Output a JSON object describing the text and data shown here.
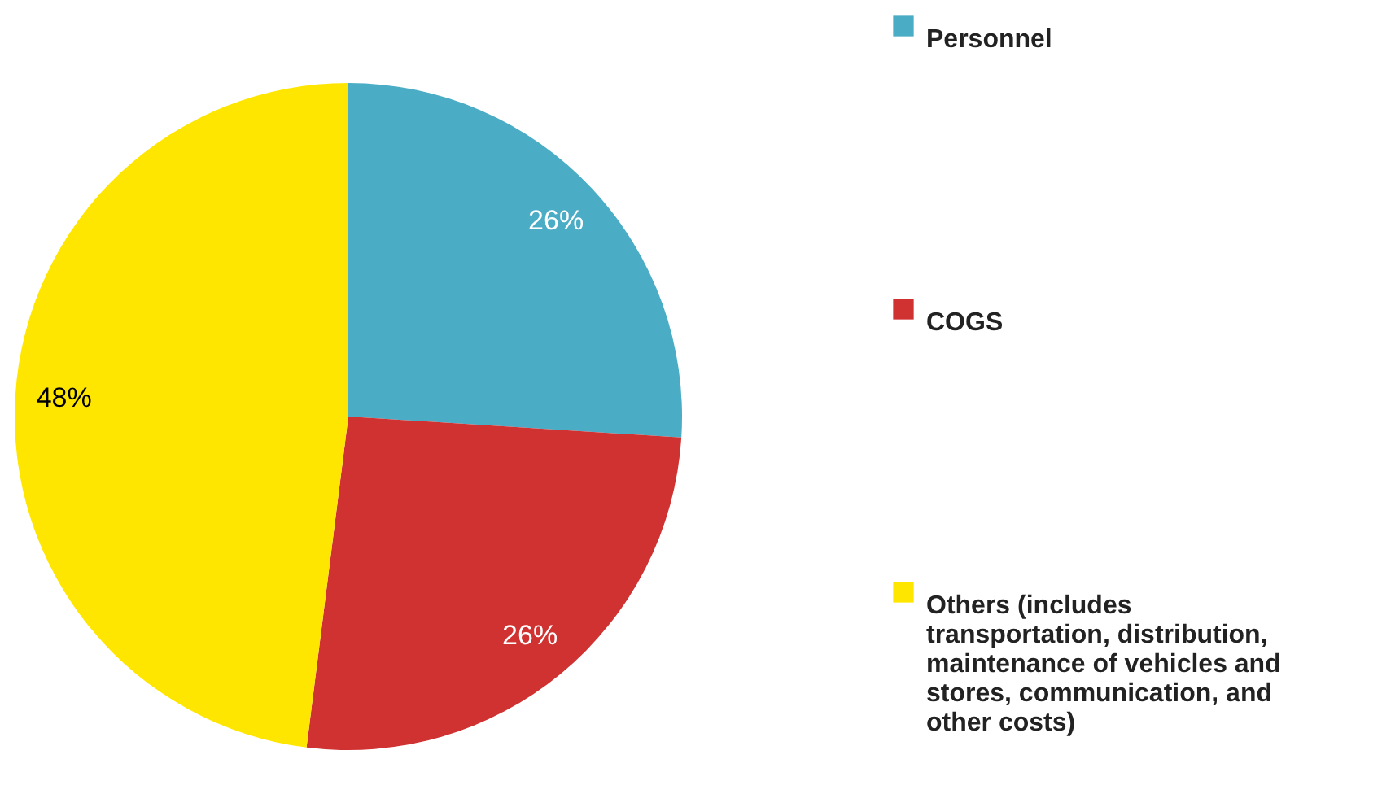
{
  "chart_data": {
    "type": "pie",
    "categories": [
      "Personnel",
      "COGS",
      "Others (includes transportation, distribution, maintenance of vehicles and stores, communication, and other costs)"
    ],
    "values": [
      26,
      26,
      48
    ],
    "colors": [
      "#4bacc6",
      "#d03232",
      "#ffe600"
    ],
    "value_labels": [
      "26%",
      "26%",
      "48%"
    ],
    "legend": "right"
  }
}
